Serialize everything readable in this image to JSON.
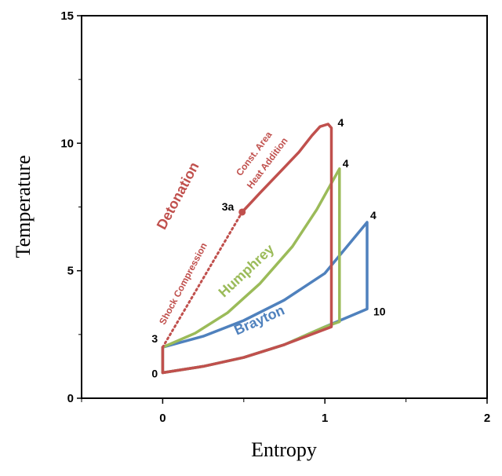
{
  "chart_data": {
    "type": "line",
    "title": "",
    "xlabel": "Entropy",
    "ylabel": "Temperature",
    "xlim": [
      -0.5,
      2
    ],
    "ylim": [
      0,
      15
    ],
    "x_ticks": [
      "0",
      "1",
      "2"
    ],
    "y_ticks": [
      "0",
      "5",
      "10",
      "15"
    ],
    "grid": false,
    "colors": {
      "detonation": "#c0504d",
      "humphrey": "#9bbb59",
      "brayton": "#4f81bd"
    },
    "series": [
      {
        "name": "Brayton",
        "color": "#4f81bd",
        "points": [
          [
            0,
            2
          ],
          [
            0.25,
            2.43
          ],
          [
            0.5,
            3.05
          ],
          [
            0.75,
            3.85
          ],
          [
            1.0,
            4.9
          ],
          [
            1.26,
            6.9
          ],
          [
            1.26,
            3.5
          ],
          [
            1.0,
            2.8
          ],
          [
            0.75,
            2.1
          ],
          [
            0.5,
            1.6
          ],
          [
            0.25,
            1.25
          ],
          [
            0,
            1
          ],
          [
            0,
            2
          ]
        ]
      },
      {
        "name": "Humphrey",
        "color": "#9bbb59",
        "points": [
          [
            0,
            2
          ],
          [
            0.2,
            2.55
          ],
          [
            0.4,
            3.35
          ],
          [
            0.6,
            4.5
          ],
          [
            0.8,
            5.95
          ],
          [
            0.95,
            7.4
          ],
          [
            1.09,
            9.0
          ],
          [
            1.09,
            3.0
          ],
          [
            1.0,
            2.8
          ],
          [
            0.75,
            2.1
          ],
          [
            0.5,
            1.6
          ],
          [
            0.25,
            1.25
          ],
          [
            0,
            1
          ],
          [
            0,
            2
          ]
        ]
      },
      {
        "name": "Detonation",
        "color": "#c0504d",
        "points": [
          [
            0.49,
            7.3
          ],
          [
            0.6,
            8.05
          ],
          [
            0.72,
            8.85
          ],
          [
            0.84,
            9.65
          ],
          [
            0.92,
            10.3
          ],
          [
            0.97,
            10.65
          ],
          [
            1.02,
            10.75
          ],
          [
            1.04,
            10.6
          ],
          [
            1.04,
            2.8
          ],
          [
            0.75,
            2.1
          ],
          [
            0.5,
            1.6
          ],
          [
            0.25,
            1.25
          ],
          [
            0,
            1
          ],
          [
            0,
            2
          ]
        ],
        "shock": [
          [
            0,
            2
          ],
          [
            0.49,
            7.3
          ]
        ]
      }
    ],
    "point_labels": [
      {
        "text": "0",
        "x": 0,
        "y": 1
      },
      {
        "text": "3",
        "x": 0,
        "y": 2
      },
      {
        "text": "3a",
        "x": 0.49,
        "y": 7.3
      },
      {
        "text": "4",
        "x": 1.04,
        "y": 10.75
      },
      {
        "text": "4",
        "x": 1.09,
        "y": 9.0
      },
      {
        "text": "4",
        "x": 1.26,
        "y": 6.9
      },
      {
        "text": "10",
        "x": 1.26,
        "y": 3.5
      }
    ],
    "annotations": {
      "detonation": "Detonation",
      "humphrey": "Humphrey",
      "brayton": "Brayton",
      "shock": "Shock Compression",
      "const_area_1": "Const. Area",
      "const_area_2": "Heat Addition"
    }
  }
}
